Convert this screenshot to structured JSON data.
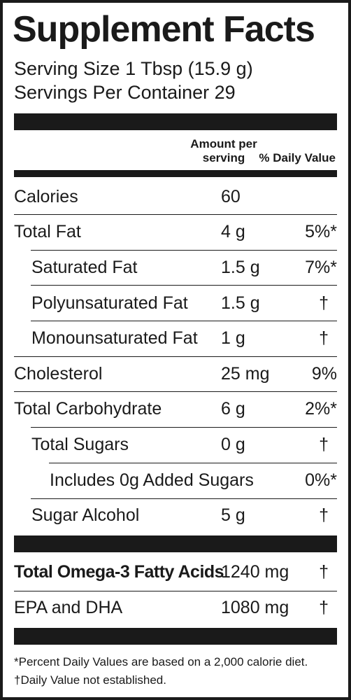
{
  "label": {
    "title": "Supplement Facts",
    "serving_size": "Serving Size 1 Tbsp (15.9 g)",
    "servings_per_container": "Servings Per Container 29",
    "header_amount": "Amount per\nserving",
    "header_dv": "% Daily Value"
  },
  "rows": [
    {
      "name": "Calories",
      "amount": "60",
      "dv": ""
    },
    {
      "name": "Total Fat",
      "amount": "4 g",
      "dv": "5%*"
    },
    {
      "name": "Saturated Fat",
      "amount": "1.5 g",
      "dv": "7%*"
    },
    {
      "name": "Polyunsaturated Fat",
      "amount": "1.5 g",
      "dv": "†"
    },
    {
      "name": "Monounsaturated Fat",
      "amount": "1 g",
      "dv": "†"
    },
    {
      "name": "Cholesterol",
      "amount": "25 mg",
      "dv": "9%"
    },
    {
      "name": "Total Carbohydrate",
      "amount": "6 g",
      "dv": "2%*"
    },
    {
      "name": "Total Sugars",
      "amount": "0 g",
      "dv": "†"
    },
    {
      "name": "Includes 0g Added Sugars",
      "amount": "",
      "dv": "0%*"
    },
    {
      "name": "Sugar Alcohol",
      "amount": "5 g",
      "dv": "†"
    }
  ],
  "omega_rows": [
    {
      "name": "Total Omega-3 Fatty Acids",
      "amount": "1240 mg",
      "dv": "†"
    },
    {
      "name": "EPA and DHA",
      "amount": "1080 mg",
      "dv": "†"
    }
  ],
  "footnotes": {
    "percent_note": "*Percent Daily Values are based on a 2,000 calorie diet.",
    "dagger_note": "†Daily Value not established."
  }
}
